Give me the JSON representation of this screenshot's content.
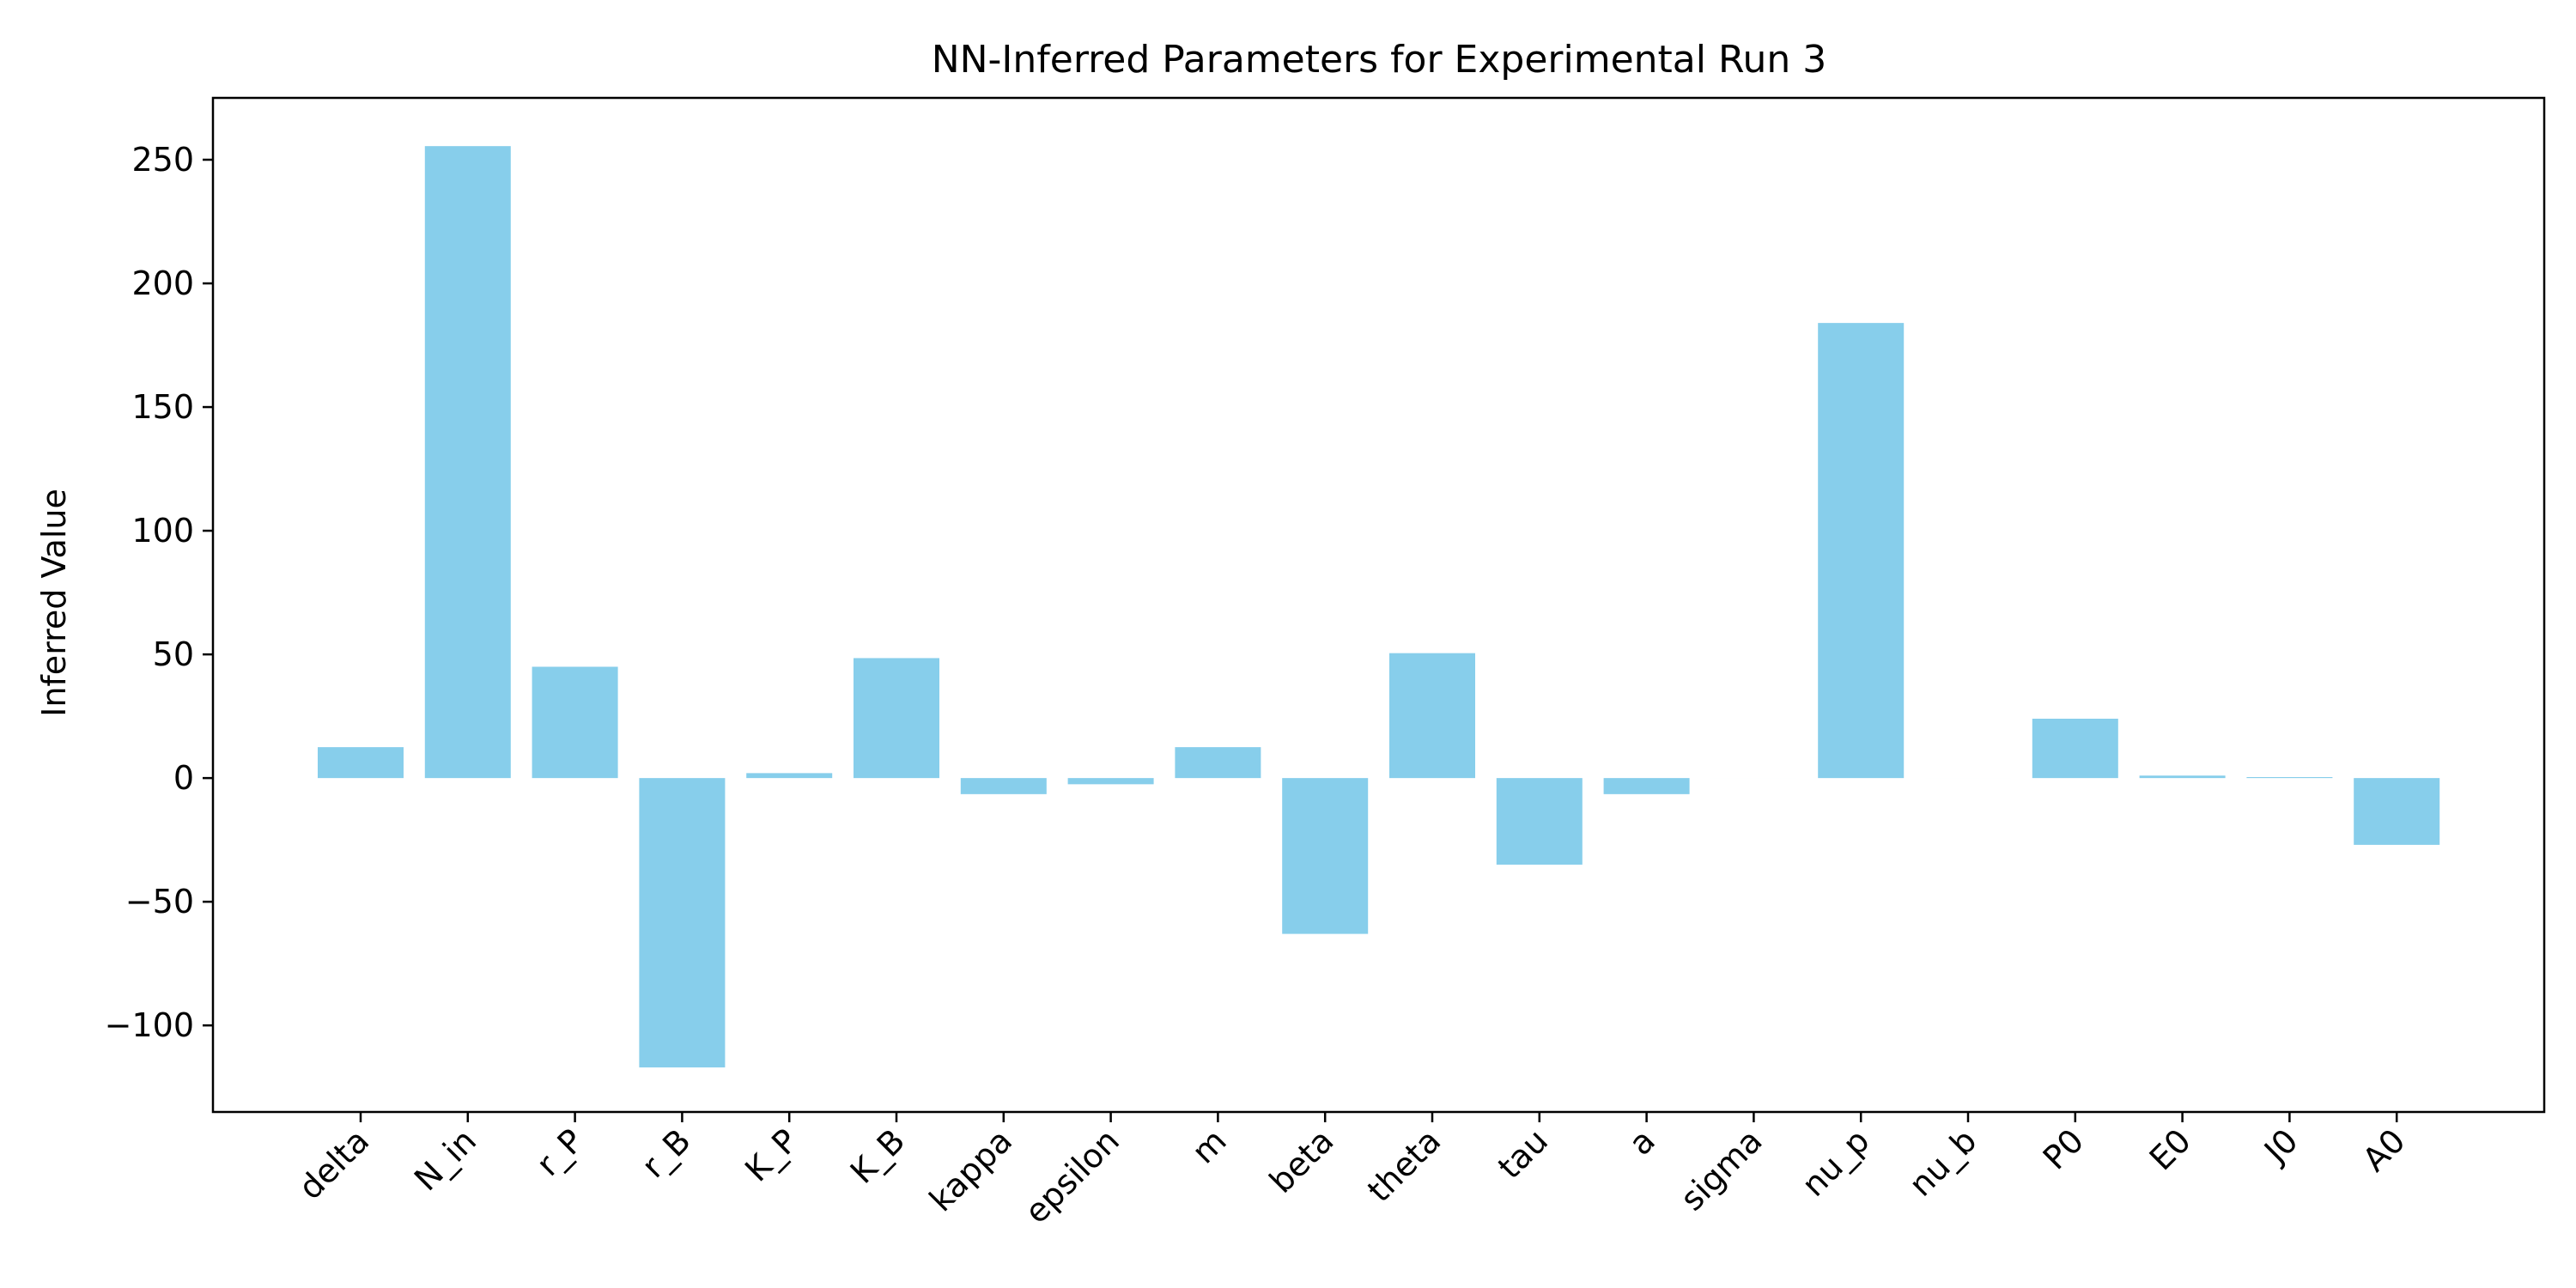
{
  "chart_data": {
    "type": "bar",
    "title": "NN-Inferred Parameters for Experimental Run 3",
    "xlabel": "",
    "ylabel": "Inferred Value",
    "categories": [
      "delta",
      "N_in",
      "r_P",
      "r_B",
      "K_P",
      "K_B",
      "kappa",
      "epsilon",
      "m",
      "beta",
      "theta",
      "tau",
      "a",
      "sigma",
      "nu_p",
      "nu_b",
      "P0",
      "E0",
      "J0",
      "A0"
    ],
    "values": [
      12.5,
      255.5,
      45.0,
      -117.0,
      2.0,
      48.5,
      -6.5,
      -2.5,
      12.5,
      -63.0,
      50.5,
      -35.0,
      -6.5,
      0.0,
      184.0,
      0.0,
      24.0,
      1.0,
      0.4,
      -27.0
    ],
    "ylim": [
      -135,
      275
    ],
    "yticks": [
      -100,
      -50,
      0,
      50,
      100,
      150,
      200,
      250
    ],
    "ytick_labels": [
      "−100",
      "−50",
      "0",
      "50",
      "100",
      "150",
      "200",
      "250"
    ],
    "bar_color": "#87ceeb",
    "grid": false
  }
}
